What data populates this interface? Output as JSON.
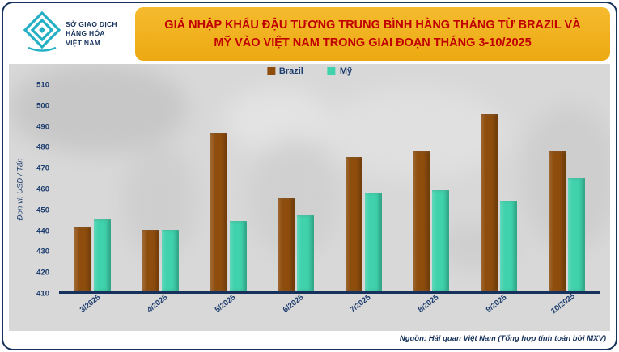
{
  "logo": {
    "line1": "SỞ GIAO DỊCH",
    "line2": "HÀNG HÓA",
    "line3": "VIỆT NAM"
  },
  "header": {
    "title_line1": "GIÁ NHẬP KHẨU ĐẬU TƯƠNG TRUNG BÌNH HÀNG THÁNG TỪ BRAZIL VÀ",
    "title_line2": "MỸ VÀO VIỆT NAM TRONG GIAI ĐOẠN THÁNG 3-10/2025"
  },
  "chart_data": {
    "type": "bar",
    "title": "GIÁ NHẬP KHẨU ĐẬU TƯƠNG TRUNG BÌNH HÀNG THÁNG TỪ BRAZIL VÀ MỸ VÀO VIỆT NAM TRONG GIAI ĐOẠN THÁNG 3-10/2025",
    "categories": [
      "3/2025",
      "4/2025",
      "5/2025",
      "6/2025",
      "7/2025",
      "8/2025",
      "9/2025",
      "10/2025"
    ],
    "series": [
      {
        "name": "Brazil",
        "color": "#8E4D0D",
        "values": [
          441,
          440,
          487,
          455,
          475,
          478,
          496,
          478
        ]
      },
      {
        "name": "Mỹ",
        "color": "#3FD2AC",
        "values": [
          445,
          440,
          444,
          447,
          458,
          459,
          454,
          465
        ]
      }
    ],
    "xlabel": "",
    "ylabel": "Đơn vị:  USD / Tấn",
    "ylim": [
      410,
      510
    ],
    "yticks": [
      410,
      420,
      430,
      440,
      450,
      460,
      470,
      480,
      490,
      500,
      510
    ],
    "grid": false,
    "legend_position": "top-center"
  },
  "footer": {
    "source": "Nguồn: Hải quan Việt Nam (Tổng hợp tính toán bởi MXV)"
  },
  "colors": {
    "banner_bg": "#F0AE1A",
    "title_text": "#C00000",
    "axis_text": "#1C3D6E",
    "border": "#16325C",
    "chart_bg": "#D8D8D8",
    "logo_teal": "#23B0C4"
  }
}
